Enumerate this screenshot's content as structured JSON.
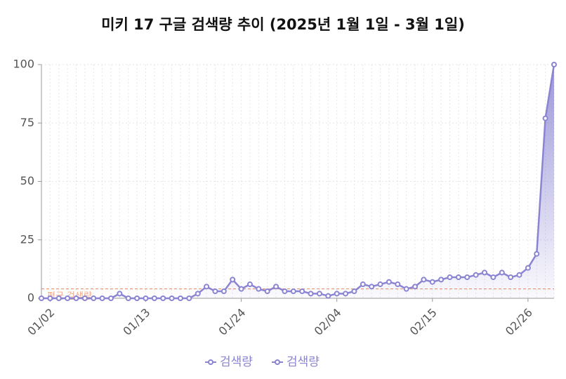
{
  "chart_data": {
    "type": "line",
    "title": "미키 17 구글 검색량 추이 (2025년 1월 1일 - 3월 1일)",
    "categories": [
      null,
      "01/02",
      null,
      null,
      null,
      null,
      null,
      null,
      null,
      null,
      null,
      null,
      "01/13",
      null,
      null,
      null,
      null,
      null,
      null,
      null,
      null,
      null,
      null,
      "01/24",
      null,
      null,
      null,
      null,
      null,
      null,
      null,
      null,
      null,
      null,
      "02/04",
      null,
      null,
      null,
      null,
      null,
      null,
      null,
      null,
      null,
      null,
      "02/15",
      null,
      null,
      null,
      null,
      null,
      null,
      null,
      null,
      null,
      null,
      "02/26",
      null,
      null,
      null
    ],
    "series": [
      {
        "name": "검색량",
        "color": "#8a84d2",
        "fill": true,
        "values": [
          0,
          0,
          0,
          0,
          0,
          0,
          0,
          0,
          0,
          2,
          0,
          0,
          0,
          0,
          0,
          0,
          0,
          0,
          2,
          5,
          3,
          3,
          8,
          4,
          6,
          4,
          3,
          5,
          3,
          3,
          3,
          2,
          2,
          1,
          2,
          2,
          3,
          6,
          5,
          6,
          7,
          6,
          4,
          5,
          8,
          7,
          8,
          9,
          9,
          9,
          10,
          11,
          9,
          11,
          9,
          10,
          13,
          19,
          77,
          100
        ]
      },
      {
        "name": "검색량",
        "color": "#8a84d2",
        "fill": false,
        "values": [
          0,
          0,
          0,
          0,
          0,
          0,
          0,
          0,
          0,
          2,
          0,
          0,
          0,
          0,
          0,
          0,
          0,
          0,
          2,
          5,
          3,
          3,
          8,
          4,
          6,
          4,
          3,
          5,
          3,
          3,
          3,
          2,
          2,
          1,
          2,
          2,
          3,
          6,
          5,
          6,
          7,
          6,
          4,
          5,
          8,
          7,
          8,
          9,
          9,
          9,
          10,
          11,
          9,
          11,
          9,
          10,
          13,
          19,
          77,
          100
        ]
      }
    ],
    "reference_line": {
      "value": 4,
      "label": "평균 검색량",
      "color": "#e8845c"
    },
    "ylim": [
      0,
      100
    ],
    "yticks": [
      0,
      25,
      50,
      75,
      100
    ],
    "grid": true,
    "legend": "bottom"
  }
}
